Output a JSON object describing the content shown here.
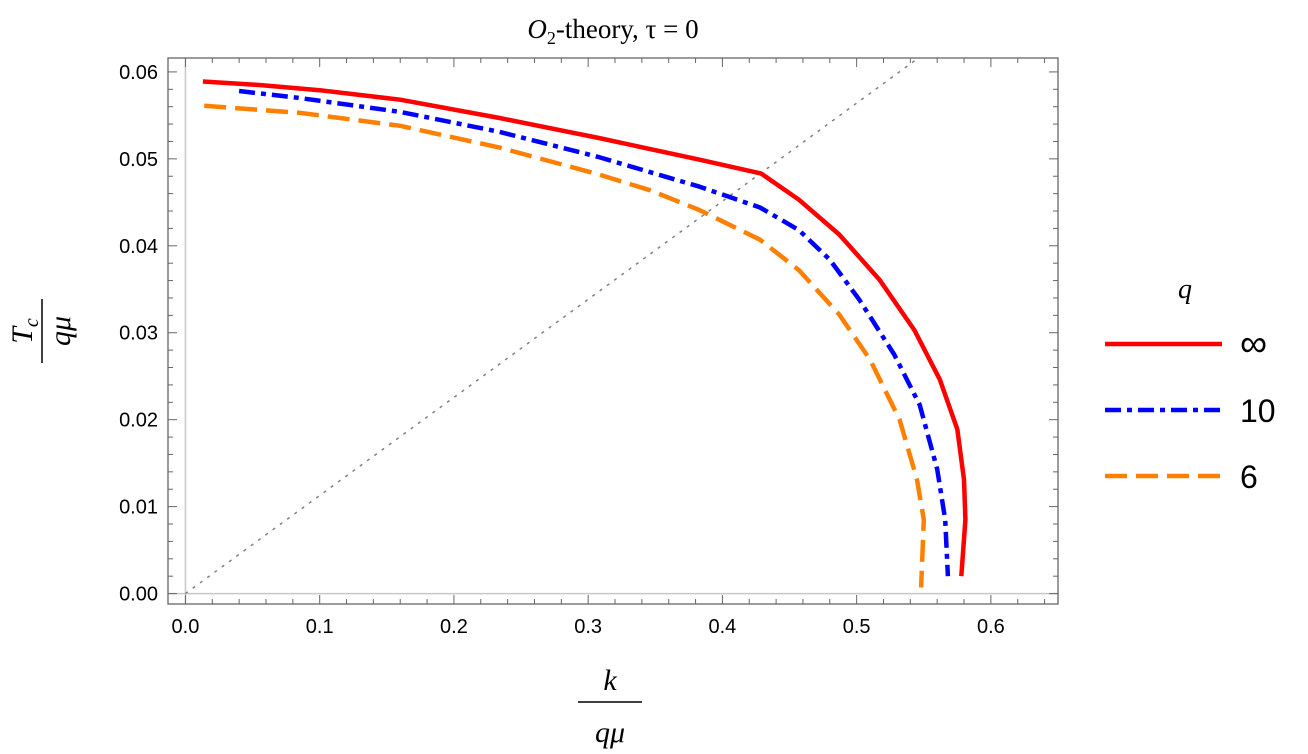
{
  "chart_data": {
    "type": "line",
    "title": "O₂-theory, τ = 0",
    "title_parts": {
      "symbol": "O",
      "subscript": "2",
      "rest": "-theory, τ = 0"
    },
    "xlabel": {
      "numerator": "k",
      "denominator": "qμ"
    },
    "ylabel": {
      "numerator": "T",
      "subscript": "c",
      "denominator": "qμ"
    },
    "xlim": [
      -0.013,
      0.65
    ],
    "ylim": [
      -0.0012,
      0.0616
    ],
    "xticks": [
      "0.0",
      "0.1",
      "0.2",
      "0.3",
      "0.4",
      "0.5",
      "0.6"
    ],
    "yticks": [
      "0.00",
      "0.01",
      "0.02",
      "0.03",
      "0.04",
      "0.05",
      "0.06"
    ],
    "grid": false,
    "legend": {
      "title": "q",
      "placement": "right"
    },
    "reference_line": {
      "style": "dotted",
      "color": "#808080",
      "points": [
        [
          0,
          0
        ],
        [
          0.554,
          0.0625
        ]
      ]
    },
    "series": [
      {
        "name": "∞",
        "color": "#ff0000",
        "style": "solid",
        "points": [
          [
            0.013,
            0.0589
          ],
          [
            0.055,
            0.0585
          ],
          [
            0.1,
            0.0579
          ],
          [
            0.16,
            0.0568
          ],
          [
            0.234,
            0.0547
          ],
          [
            0.308,
            0.0524
          ],
          [
            0.383,
            0.0499
          ],
          [
            0.429,
            0.0483
          ],
          [
            0.457,
            0.0453
          ],
          [
            0.487,
            0.0413
          ],
          [
            0.517,
            0.0361
          ],
          [
            0.543,
            0.0303
          ],
          [
            0.562,
            0.0246
          ],
          [
            0.575,
            0.0189
          ],
          [
            0.58,
            0.0131
          ],
          [
            0.581,
            0.0085
          ],
          [
            0.578,
            0.002
          ]
        ]
      },
      {
        "name": "10",
        "color": "#0000ff",
        "style": "dashdot",
        "points": [
          [
            0.04,
            0.0578
          ],
          [
            0.085,
            0.057
          ],
          [
            0.16,
            0.0554
          ],
          [
            0.234,
            0.0531
          ],
          [
            0.308,
            0.0502
          ],
          [
            0.383,
            0.0468
          ],
          [
            0.428,
            0.0444
          ],
          [
            0.457,
            0.0418
          ],
          [
            0.48,
            0.0384
          ],
          [
            0.502,
            0.0338
          ],
          [
            0.528,
            0.0275
          ],
          [
            0.547,
            0.0217
          ],
          [
            0.56,
            0.0143
          ],
          [
            0.566,
            0.0085
          ],
          [
            0.568,
            0.002
          ]
        ]
      },
      {
        "name": "6",
        "color": "#ff8000",
        "style": "dashed",
        "points": [
          [
            0.014,
            0.0561
          ],
          [
            0.085,
            0.0553
          ],
          [
            0.16,
            0.0538
          ],
          [
            0.234,
            0.0513
          ],
          [
            0.308,
            0.0482
          ],
          [
            0.346,
            0.0464
          ],
          [
            0.383,
            0.0441
          ],
          [
            0.428,
            0.0407
          ],
          [
            0.457,
            0.0372
          ],
          [
            0.487,
            0.0321
          ],
          [
            0.51,
            0.0269
          ],
          [
            0.532,
            0.02
          ],
          [
            0.545,
            0.0131
          ],
          [
            0.55,
            0.0085
          ],
          [
            0.548,
            0.0007
          ]
        ]
      }
    ]
  }
}
